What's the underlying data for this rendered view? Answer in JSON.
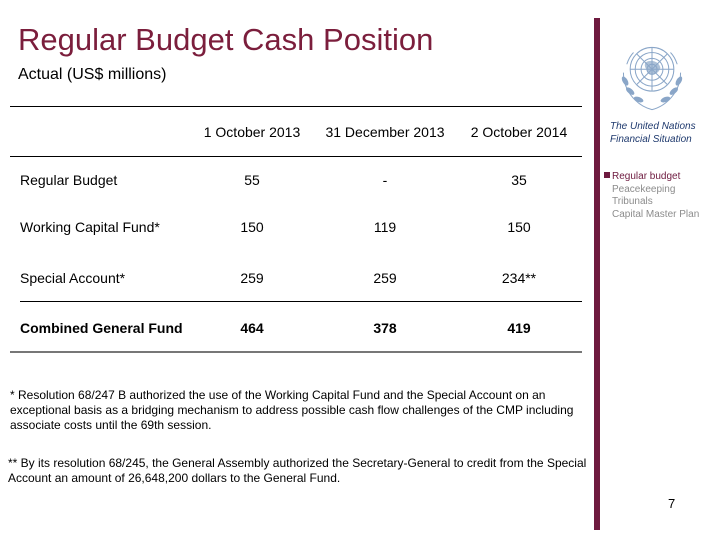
{
  "slide": {
    "title": "Regular Budget Cash Position",
    "subtitle": "Actual (US$ millions)",
    "page_number": "7"
  },
  "table": {
    "headers": [
      "1 October 2013",
      "31 December 2013",
      "2 October 2014"
    ],
    "rows": [
      {
        "label": "Regular Budget",
        "values": [
          "55",
          "-",
          "35"
        ]
      },
      {
        "label": "Working Capital Fund*",
        "values": [
          "150",
          "119",
          "150"
        ]
      },
      {
        "label": "Special Account*",
        "values": [
          "259",
          "259",
          "234**"
        ]
      },
      {
        "label": "Combined General Fund",
        "values": [
          "464",
          "378",
          "419"
        ]
      }
    ]
  },
  "footnotes": {
    "note1": "* Resolution 68/247 B authorized the use of the Working Capital Fund and the Special Account on an exceptional basis as a bridging mechanism to address possible cash flow challenges of the CMP including associate costs until the 69th session.",
    "note2": "** By its resolution 68/245, the General Assembly authorized the Secretary-General to credit from the Special Account an amount of 26,648,200 dollars to the General Fund."
  },
  "sidebar": {
    "logo_icon": "un-emblem-icon",
    "heading": "The United Nations Financial Situation",
    "items": [
      {
        "label": "Regular budget",
        "active": true
      },
      {
        "label": "Peacekeeping",
        "active": false
      },
      {
        "label": "Tribunals",
        "active": false
      },
      {
        "label": "Capital Master Plan",
        "active": false
      }
    ]
  },
  "colors": {
    "title": "#7b1e3c",
    "accent_bar": "#6e1a3f",
    "sidebar_heading": "#1f3a6e",
    "inactive_item": "#8c8c8c"
  }
}
